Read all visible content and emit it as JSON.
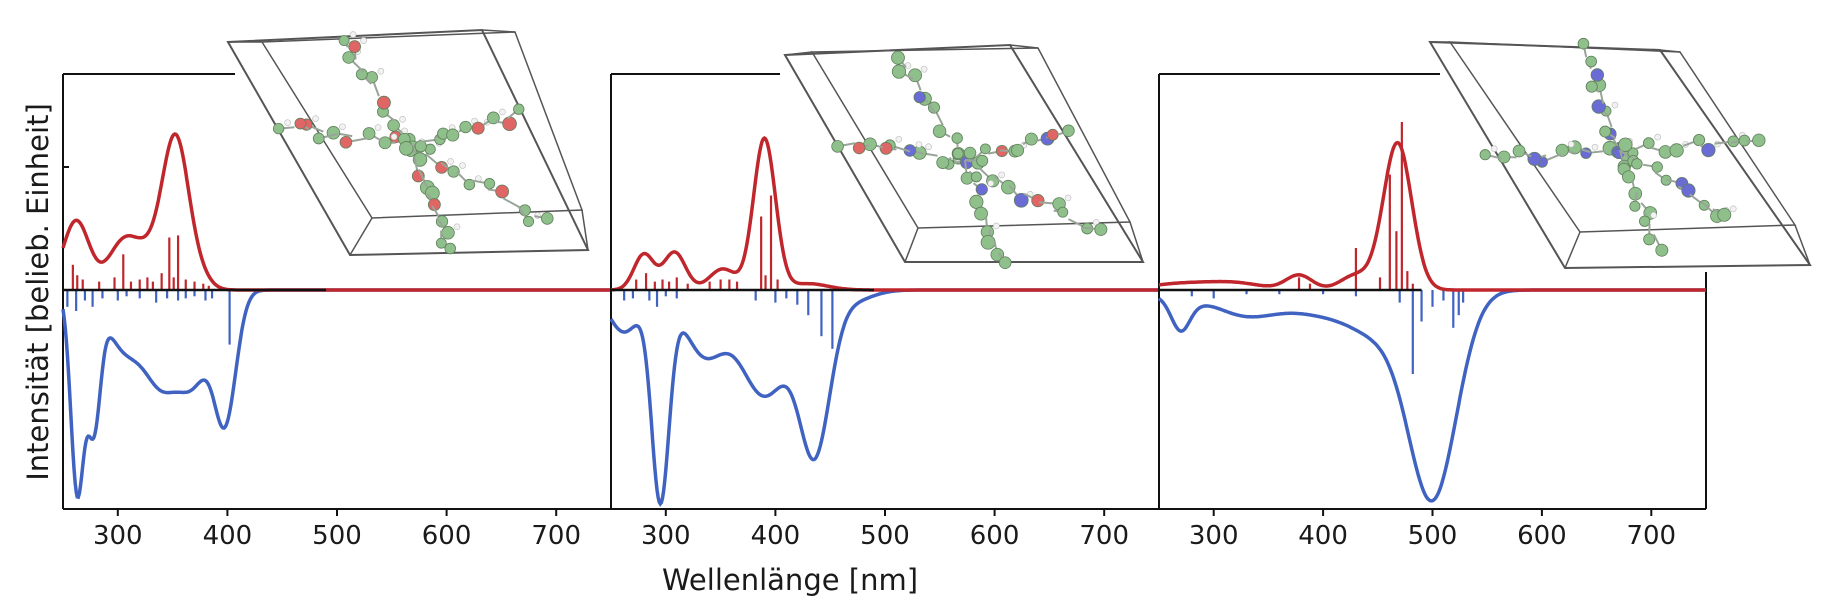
{
  "xlabel": "Wellenlänge [nm]",
  "ylabel": "Intensität [belieb. Einheit]",
  "colors": {
    "absorption": "#c0272d",
    "emission": "#4063c2",
    "baseline": "#111111",
    "molecule_carbon": "#8fbf8a",
    "molecule_oxygen": "#e06666",
    "molecule_nitrogen": "#6b6bd6",
    "molecule_hydrogen": "#f2f2f2",
    "cell": "#555555"
  },
  "chart_data": [
    {
      "type": "line",
      "xlim": [
        250,
        750
      ],
      "ylim": [
        -1,
        1
      ],
      "xticks": [
        300,
        400,
        500,
        600,
        700
      ],
      "xtick_labels": [
        "300",
        "400",
        "500",
        "600",
        "700"
      ],
      "molecule": "oxygen-linked",
      "absorption_peaks": [
        [
          262,
          0.33,
          12
        ],
        [
          305,
          0.22,
          14
        ],
        [
          330,
          0.14,
          14
        ],
        [
          353,
          0.7,
          12
        ],
        [
          375,
          0.05,
          10
        ]
      ],
      "absorption_sticks": [
        [
          259,
          0.12
        ],
        [
          263,
          0.07
        ],
        [
          268,
          0.05
        ],
        [
          283,
          0.04
        ],
        [
          297,
          0.06
        ],
        [
          305,
          0.17
        ],
        [
          312,
          0.04
        ],
        [
          320,
          0.05
        ],
        [
          327,
          0.06
        ],
        [
          332,
          0.04
        ],
        [
          340,
          0.08
        ],
        [
          347,
          0.25
        ],
        [
          351,
          0.06
        ],
        [
          355,
          0.26
        ],
        [
          362,
          0.05
        ],
        [
          370,
          0.04
        ],
        [
          378,
          0.03
        ],
        [
          383,
          0.02
        ]
      ],
      "emission_peaks": [
        [
          263,
          0.95,
          6
        ],
        [
          278,
          0.6,
          6
        ],
        [
          305,
          0.26,
          16
        ],
        [
          340,
          0.42,
          16
        ],
        [
          370,
          0.38,
          14
        ],
        [
          398,
          0.6,
          10
        ]
      ],
      "emission_sticks": [
        [
          254,
          0.08
        ],
        [
          262,
          0.1
        ],
        [
          270,
          0.05
        ],
        [
          277,
          0.08
        ],
        [
          286,
          0.04
        ],
        [
          300,
          0.05
        ],
        [
          308,
          0.03
        ],
        [
          320,
          0.04
        ],
        [
          335,
          0.06
        ],
        [
          345,
          0.04
        ],
        [
          355,
          0.05
        ],
        [
          362,
          0.04
        ],
        [
          370,
          0.03
        ],
        [
          380,
          0.05
        ],
        [
          386,
          0.04
        ],
        [
          402,
          0.26
        ]
      ]
    },
    {
      "type": "line",
      "xlim": [
        250,
        750
      ],
      "ylim": [
        -1,
        1
      ],
      "xticks": [
        300,
        400,
        500,
        600,
        700
      ],
      "xtick_labels": [
        "300",
        "400",
        "500",
        "600",
        "700"
      ],
      "molecule": "nitrogen-oxygen-linked",
      "absorption_peaks": [
        [
          280,
          0.17,
          9
        ],
        [
          308,
          0.18,
          10
        ],
        [
          352,
          0.1,
          12
        ],
        [
          390,
          0.72,
          10
        ],
        [
          430,
          0.03,
          18
        ]
      ],
      "absorption_sticks": [
        [
          273,
          0.05
        ],
        [
          282,
          0.08
        ],
        [
          290,
          0.04
        ],
        [
          297,
          0.05
        ],
        [
          303,
          0.04
        ],
        [
          310,
          0.06
        ],
        [
          320,
          0.03
        ],
        [
          340,
          0.04
        ],
        [
          350,
          0.05
        ],
        [
          358,
          0.05
        ],
        [
          365,
          0.04
        ],
        [
          387,
          0.35
        ],
        [
          391,
          0.07
        ],
        [
          396,
          0.45
        ],
        [
          402,
          0.05
        ]
      ],
      "emission_peaks": [
        [
          295,
          0.98,
          8
        ],
        [
          262,
          0.2,
          14
        ],
        [
          335,
          0.3,
          18
        ],
        [
          390,
          0.5,
          22
        ],
        [
          436,
          0.74,
          14
        ],
        [
          470,
          0.05,
          18
        ]
      ],
      "emission_sticks": [
        [
          262,
          0.05
        ],
        [
          270,
          0.04
        ],
        [
          285,
          0.05
        ],
        [
          292,
          0.08
        ],
        [
          300,
          0.03
        ],
        [
          310,
          0.04
        ],
        [
          382,
          0.05
        ],
        [
          400,
          0.06
        ],
        [
          410,
          0.04
        ],
        [
          420,
          0.07
        ],
        [
          430,
          0.12
        ],
        [
          442,
          0.22
        ],
        [
          452,
          0.28
        ]
      ]
    },
    {
      "type": "line",
      "xlim": [
        250,
        750
      ],
      "ylim": [
        -1,
        1
      ],
      "xticks": [
        300,
        400,
        500,
        600,
        700
      ],
      "xtick_labels": [
        "300",
        "400",
        "500",
        "600",
        "700"
      ],
      "molecule": "nitrogen-linked",
      "absorption_peaks": [
        [
          270,
          0.03,
          30
        ],
        [
          320,
          0.03,
          25
        ],
        [
          378,
          0.07,
          12
        ],
        [
          430,
          0.07,
          14
        ],
        [
          468,
          0.7,
          13
        ]
      ],
      "absorption_sticks": [
        [
          378,
          0.06
        ],
        [
          388,
          0.03
        ],
        [
          430,
          0.2
        ],
        [
          452,
          0.06
        ],
        [
          461,
          0.55
        ],
        [
          467,
          0.28
        ],
        [
          472,
          0.8
        ],
        [
          477,
          0.09
        ],
        [
          482,
          0.03
        ]
      ],
      "emission_peaks": [
        [
          268,
          0.06,
          16
        ],
        [
          270,
          0.12,
          8
        ],
        [
          330,
          0.12,
          30
        ],
        [
          400,
          0.1,
          30
        ],
        [
          450,
          0.17,
          25
        ],
        [
          500,
          0.98,
          22
        ]
      ],
      "emission_sticks": [
        [
          280,
          0.03
        ],
        [
          300,
          0.04
        ],
        [
          330,
          0.02
        ],
        [
          360,
          0.02
        ],
        [
          400,
          0.02
        ],
        [
          430,
          0.03
        ],
        [
          470,
          0.06
        ],
        [
          482,
          0.4
        ],
        [
          490,
          0.15
        ],
        [
          500,
          0.08
        ],
        [
          510,
          0.05
        ],
        [
          519,
          0.18
        ],
        [
          524,
          0.12
        ],
        [
          528,
          0.06
        ]
      ]
    }
  ]
}
